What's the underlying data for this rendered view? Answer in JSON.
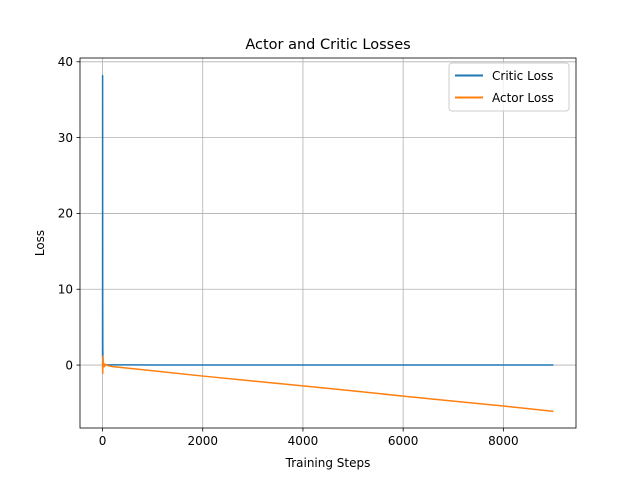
{
  "chart_data": {
    "type": "line",
    "title": "Actor and Critic Losses",
    "xlabel": "Training Steps",
    "ylabel": "Loss",
    "xlim": [
      -450,
      9450
    ],
    "ylim": [
      -8.3,
      40.5
    ],
    "xticks": [
      0,
      2000,
      4000,
      6000,
      8000
    ],
    "yticks": [
      0,
      10,
      20,
      30,
      40
    ],
    "grid": true,
    "legend_position": "upper right",
    "series": [
      {
        "name": "Critic Loss",
        "color": "#1f77b4",
        "points": [
          [
            0,
            1
          ],
          [
            1,
            38.2
          ],
          [
            2,
            25
          ],
          [
            3,
            8
          ],
          [
            5,
            2
          ],
          [
            8,
            1
          ],
          [
            10,
            0.3
          ],
          [
            15,
            0.1
          ],
          [
            20,
            0.05
          ],
          [
            50,
            0.03
          ],
          [
            100,
            0.02
          ],
          [
            500,
            0.02
          ],
          [
            1000,
            0.01
          ],
          [
            2000,
            0.01
          ],
          [
            3000,
            0.01
          ],
          [
            4000,
            0.01
          ],
          [
            5000,
            0.01
          ],
          [
            6000,
            0.01
          ],
          [
            7000,
            0.01
          ],
          [
            8000,
            0.01
          ],
          [
            9000,
            0.01
          ]
        ]
      },
      {
        "name": "Actor Loss",
        "color": "#ff7f0e",
        "points": [
          [
            0,
            -0.5
          ],
          [
            2,
            1.2
          ],
          [
            4,
            -1.1
          ],
          [
            6,
            0.6
          ],
          [
            10,
            -0.3
          ],
          [
            20,
            0.3
          ],
          [
            40,
            -0.2
          ],
          [
            60,
            0.1
          ],
          [
            100,
            -0.05
          ],
          [
            200,
            -0.2
          ],
          [
            500,
            -0.4
          ],
          [
            1000,
            -0.75
          ],
          [
            2000,
            -1.45
          ],
          [
            3000,
            -2.1
          ],
          [
            4000,
            -2.75
          ],
          [
            5000,
            -3.4
          ],
          [
            6000,
            -4.1
          ],
          [
            7000,
            -4.75
          ],
          [
            8000,
            -5.4
          ],
          [
            9000,
            -6.1
          ]
        ]
      }
    ]
  }
}
